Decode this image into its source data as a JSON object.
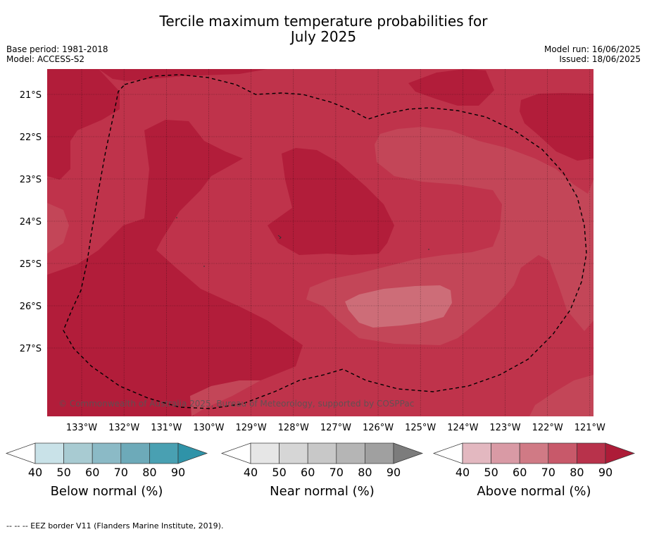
{
  "title_line1": "Tercile maximum temperature probabilities for",
  "title_line2": "July 2025",
  "meta": {
    "base_period": "Base period: 1981-2018",
    "model": "Model: ACCESS-S2",
    "model_run": "Model run: 16/06/2025",
    "issued": "Issued: 18/06/2025"
  },
  "map": {
    "lat_labels": [
      "21°S",
      "22°S",
      "23°S",
      "24°S",
      "25°S",
      "26°S",
      "27°S"
    ],
    "lon_labels": [
      "133°W",
      "132°W",
      "131°W",
      "130°W",
      "129°W",
      "128°W",
      "127°W",
      "126°W",
      "125°W",
      "124°W",
      "123°W",
      "122°W",
      "121°W"
    ],
    "copyright": "© Commonwealth of Australia 2025, Bureau of Meteorology, supported by COSPPac",
    "colors": {
      "above_80_90": "#b21d3a",
      "above_70_80": "#bf334b",
      "above_60_70": "#c34658",
      "above_50_60": "#cd6d78"
    }
  },
  "colorbars": [
    {
      "name": "below",
      "title": "Below normal (%)",
      "ticks": [
        "40",
        "50",
        "60",
        "70",
        "80",
        "90"
      ],
      "colors": [
        "#ffffff",
        "#c9e2e8",
        "#a8cbd2",
        "#8bbac6",
        "#6daab9",
        "#49a0b2",
        "#2f93a8"
      ]
    },
    {
      "name": "near",
      "title": "Near normal (%)",
      "ticks": [
        "40",
        "50",
        "60",
        "70",
        "80",
        "90"
      ],
      "colors": [
        "#ffffff",
        "#e6e6e6",
        "#d6d6d6",
        "#c8c8c8",
        "#b5b5b5",
        "#a0a0a0",
        "#7c7c7c"
      ]
    },
    {
      "name": "above",
      "title": "Above normal (%)",
      "ticks": [
        "40",
        "50",
        "60",
        "70",
        "80",
        "90"
      ],
      "colors": [
        "#ffffff",
        "#e3b8c0",
        "#d99aa5",
        "#d07a85",
        "#c8596a",
        "#b8324b",
        "#ad1c38"
      ]
    }
  ],
  "footer": "--  --  -- EEZ border V11 (Flanders Marine Institute, 2019)."
}
